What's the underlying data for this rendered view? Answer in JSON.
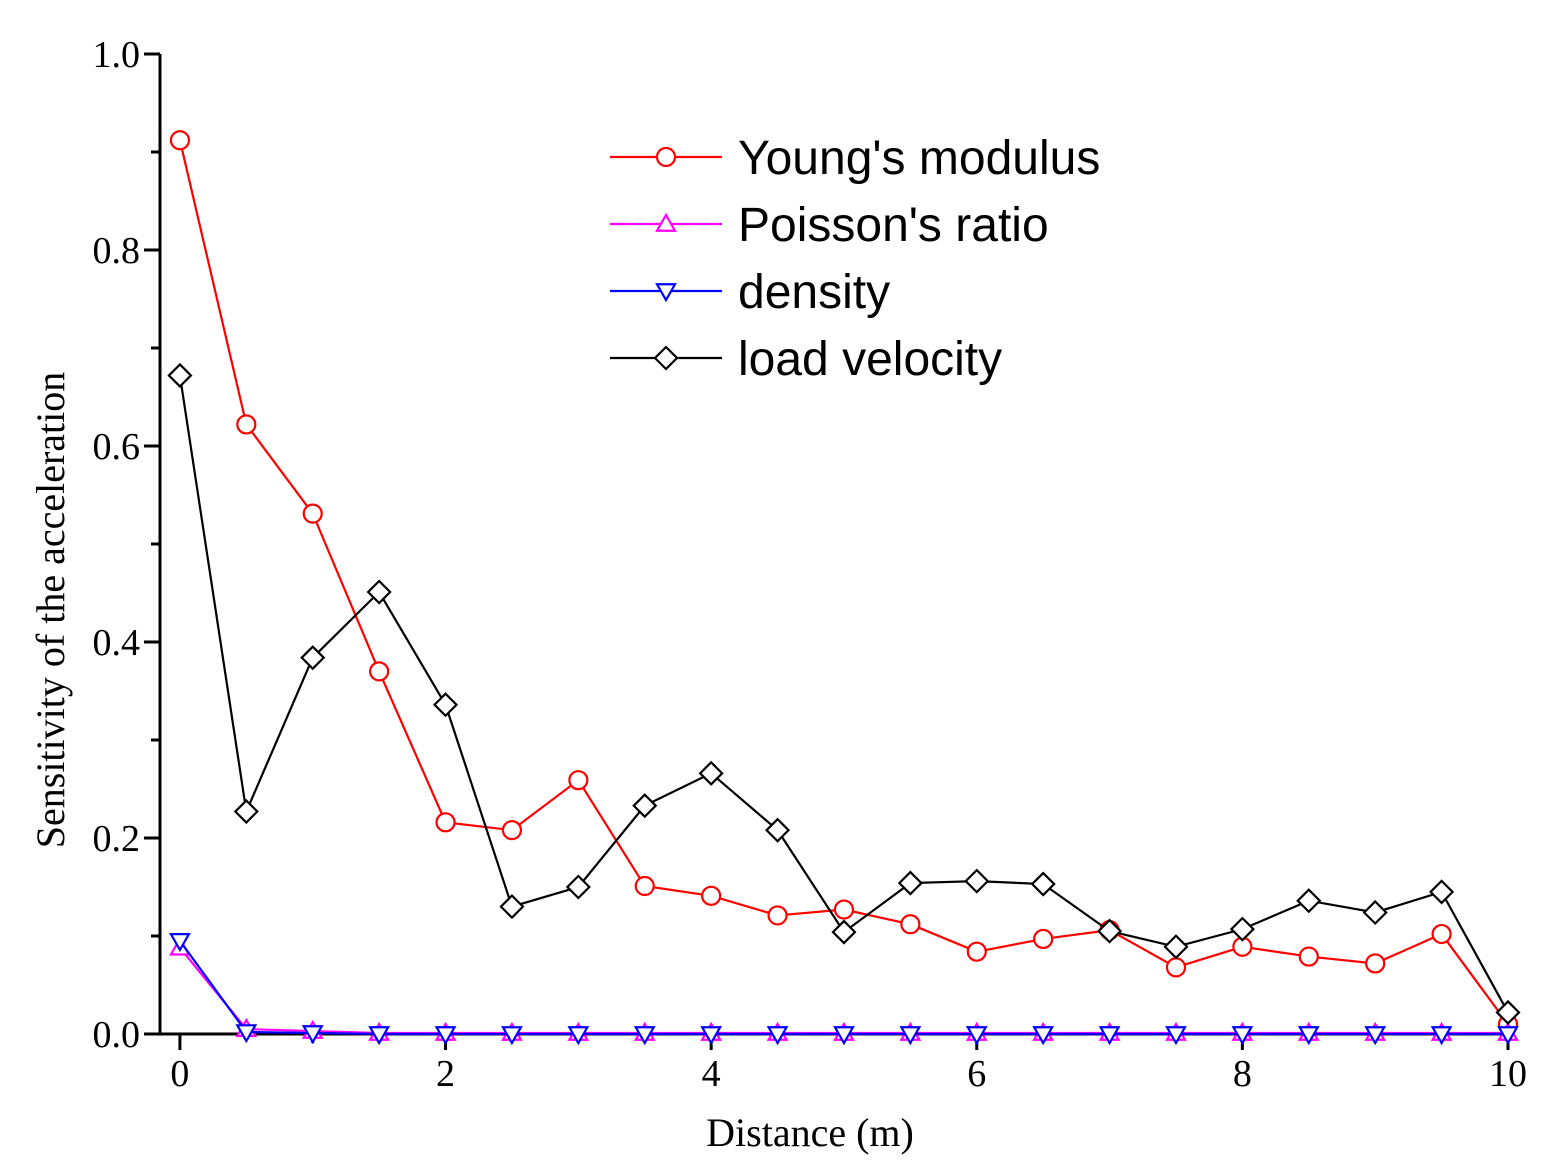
{
  "chart_data": {
    "type": "line",
    "title": "",
    "xlabel": "Distance (m)",
    "ylabel": "Sensitivity of the acceleration",
    "xlim": [
      -0.15,
      10
    ],
    "ylim": [
      0,
      1.0
    ],
    "x_ticks": [
      0,
      2,
      4,
      6,
      8,
      10
    ],
    "y_ticks": [
      0.0,
      0.2,
      0.4,
      0.6,
      0.8,
      1.0
    ],
    "x_tick_labels": [
      "0",
      "2",
      "4",
      "6",
      "8",
      "10"
    ],
    "y_tick_labels": [
      "0.0",
      "0.2",
      "0.4",
      "0.6",
      "0.8",
      "1.0"
    ],
    "grid": false,
    "legend_position": "top-center",
    "x": [
      0,
      0.5,
      1,
      1.5,
      2,
      2.5,
      3,
      3.5,
      4,
      4.5,
      5,
      5.5,
      6,
      6.5,
      7,
      7.5,
      8,
      8.5,
      9,
      9.5,
      10
    ],
    "series": [
      {
        "name": "Young's modulus",
        "color": "#ff0000",
        "marker": "circle",
        "values": [
          0.912,
          0.622,
          0.531,
          0.37,
          0.216,
          0.208,
          0.259,
          0.151,
          0.141,
          0.121,
          0.127,
          0.112,
          0.084,
          0.097,
          0.106,
          0.068,
          0.089,
          0.079,
          0.072,
          0.102,
          0.01
        ]
      },
      {
        "name": "Poisson's ratio",
        "color": "#ff00ff",
        "marker": "triangle-up",
        "values": [
          0.088,
          0.005,
          0.003,
          0.001,
          0.001,
          0.001,
          0.001,
          0.001,
          0.001,
          0.001,
          0.001,
          0.001,
          0.001,
          0.001,
          0.001,
          0.001,
          0.001,
          0.001,
          0.001,
          0.001,
          0.001
        ]
      },
      {
        "name": "density",
        "color": "#0000ff",
        "marker": "triangle-down",
        "values": [
          0.095,
          0.002,
          0.001,
          0.0,
          0.0,
          0.0,
          0.0,
          0.0,
          0.0,
          0.0,
          0.0,
          0.0,
          0.0,
          0.0,
          0.0,
          0.0,
          0.0,
          0.0,
          0.0,
          0.0,
          0.0
        ]
      },
      {
        "name": "load velocity",
        "color": "#000000",
        "marker": "diamond",
        "values": [
          0.672,
          0.227,
          0.384,
          0.451,
          0.336,
          0.13,
          0.15,
          0.233,
          0.266,
          0.208,
          0.104,
          0.154,
          0.156,
          0.153,
          0.105,
          0.089,
          0.107,
          0.136,
          0.124,
          0.145,
          0.022
        ]
      }
    ]
  }
}
